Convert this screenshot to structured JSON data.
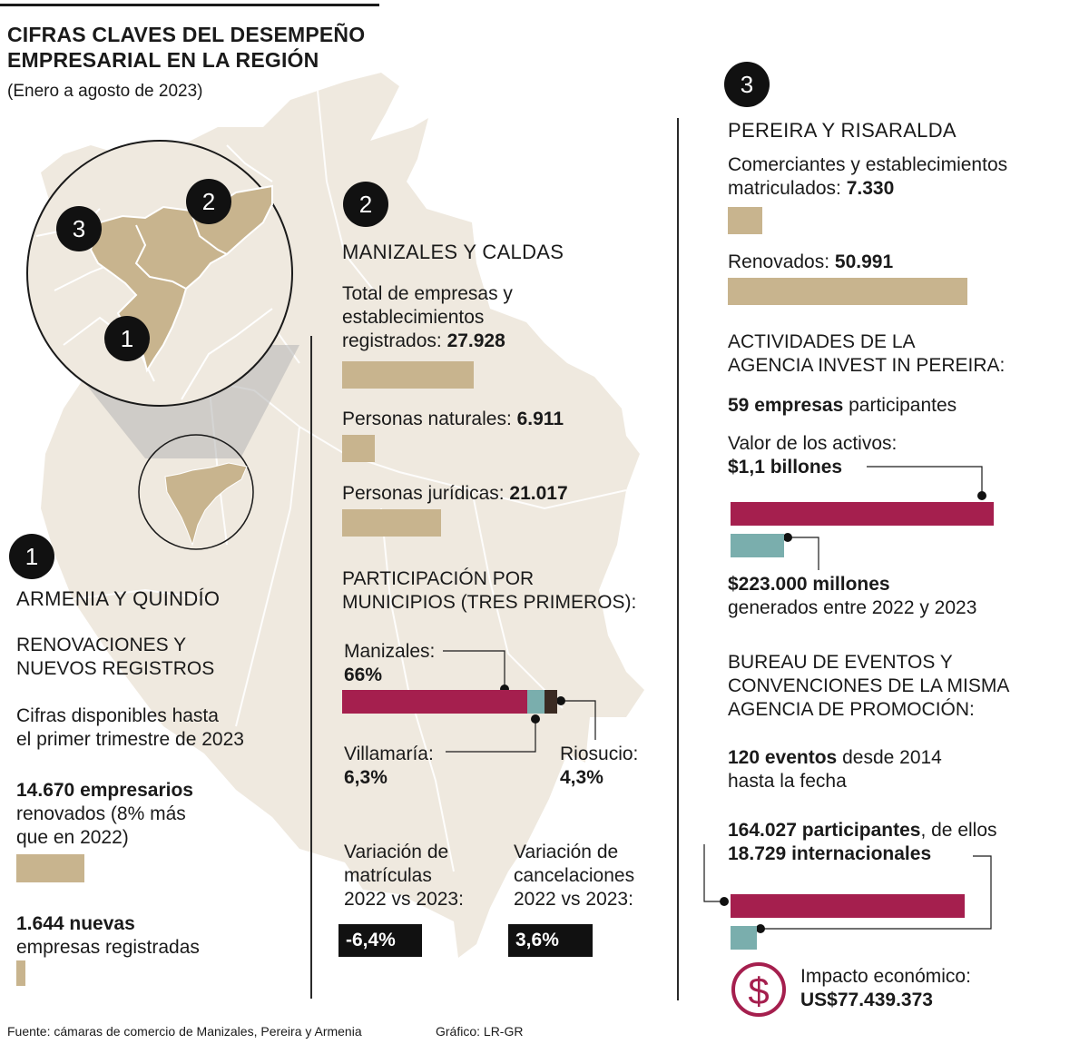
{
  "header": {
    "title_line1": "CIFRAS CLAVES DEL DESEMPEÑO",
    "title_line2": "EMPRESARIAL EN LA REGIÓN",
    "subtitle": "(Enero a agosto de 2023)"
  },
  "colors": {
    "map": "#efe9df",
    "tan": "#c8b48e",
    "wine": "#a51f4e",
    "teal": "#7aaead",
    "dark": "#3a2a22"
  },
  "map_badges": {
    "b1": "1",
    "b2": "2",
    "b3": "3"
  },
  "section1": {
    "badge": "1",
    "title": "ARMENIA Y QUINDÍO",
    "sub1": "RENOVACIONES Y",
    "sub2": "NUEVOS REGISTROS",
    "note1": "Cifras disponibles hasta",
    "note2": "el primer trimestre de 2023",
    "renewed_value": "14.670 empresarios",
    "renewed_text1": "renovados (8% más",
    "renewed_text2": "que en 2022)",
    "new_value": "1.644 nuevas",
    "new_text": "empresas registradas",
    "bars": {
      "renewed": 14670,
      "new": 1644
    }
  },
  "section2": {
    "badge": "2",
    "title": "MANIZALES Y CALDAS",
    "total_l1": "Total de empresas y",
    "total_l2": "establecimientos",
    "total_l3": "registrados: ",
    "total_value": "27.928",
    "naturales_label": "Personas naturales: ",
    "naturales_value": "6.911",
    "juridicas_label": "Personas jurídicas: ",
    "juridicas_value": "21.017",
    "bars": {
      "total": 27928,
      "naturales": 6911,
      "juridicas": 21017
    },
    "part_l1": "PARTICIPACIÓN POR",
    "part_l2": "MUNICIPIOS (TRES PRIMEROS):",
    "manizales_label": "Manizales:",
    "manizales_value": "66%",
    "villamaria_label": "Villamaría:",
    "villamaria_value": "6,3%",
    "riosucio_label": "Riosucio:",
    "riosucio_value": "4,3%",
    "shares": {
      "manizales": 66,
      "villamaria": 6.3,
      "riosucio": 4.3
    },
    "var_mat_l1": "Variación de",
    "var_mat_l2": "matrículas",
    "var_mat_l3": "2022 vs 2023:",
    "var_mat_value": "-6,4%",
    "var_can_l1": "Variación de",
    "var_can_l2": "cancelaciones",
    "var_can_l3": "2022 vs 2023:",
    "var_can_value": "3,6%"
  },
  "section3": {
    "badge": "3",
    "title": "PEREIRA Y RISARALDA",
    "com_l1": "Comerciantes y establecimientos",
    "com_l2": "matriculados: ",
    "com_value": "7.330",
    "ren_label": "Renovados: ",
    "ren_value": "50.991",
    "bars": {
      "matriculados": 7330,
      "renovados": 50991
    },
    "act_l1": "ACTIVIDADES DE LA",
    "act_l2": "AGENCIA INVEST IN PEREIRA:",
    "emp_value": "59 empresas",
    "emp_text": " participantes",
    "activos_label": "Valor de los activos:",
    "activos_value": "$1,1 billones",
    "gen_value": "$223.000 millones",
    "gen_text": "generados entre 2022 y 2023",
    "money_bars": {
      "activos_millones": 1100000,
      "generados_millones": 223000
    },
    "bur_l1": "BUREAU DE EVENTOS Y",
    "bur_l2": "CONVENCIONES DE LA MISMA",
    "bur_l3": "AGENCIA DE PROMOCIÓN:",
    "ev_value": "120 eventos",
    "ev_text1": " desde 2014",
    "ev_text2": "hasta la fecha",
    "part_value": "164.027 participantes",
    "part_text": ", de ellos",
    "intl_value": "18.729 internacionales",
    "participant_bars": {
      "participantes": 164027,
      "internacionales": 18729
    },
    "impact_label": "Impacto económico:",
    "impact_value": "US$77.439.373",
    "dollar_glyph": "$",
    "dollar_icon": "dollar-coin-icon"
  },
  "footer": {
    "source": "Fuente: cámaras de comercio de Manizales, Pereira y Armenia",
    "credit": "Gráfico: LR-GR"
  }
}
